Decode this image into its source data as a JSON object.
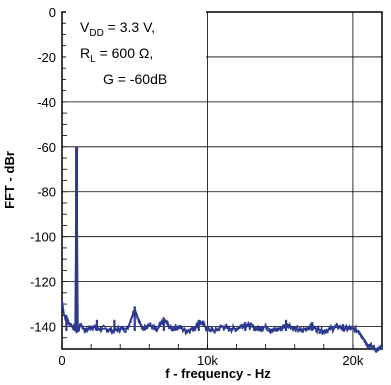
{
  "chart_data": {
    "type": "line",
    "title": "",
    "xlabel": "f - frequency - Hz",
    "ylabel": "FFT - dBr",
    "xlim": [
      0,
      22000
    ],
    "ylim": [
      -150,
      0
    ],
    "x_ticks": [
      0,
      10000,
      20000
    ],
    "x_tick_labels": [
      "0",
      "10k",
      "20k"
    ],
    "y_ticks": [
      0,
      -20,
      -40,
      -60,
      -80,
      -100,
      -120,
      -140
    ],
    "y_tick_labels": [
      "0",
      "-20",
      "-40",
      "-60",
      "-80",
      "-100",
      "-120",
      "-140"
    ],
    "grid": true,
    "line_color": "#2b3990",
    "annotation": {
      "line1_main": "V",
      "line1_sub": "DD",
      "line1_rest": " = 3.3 V,",
      "line2_main": "R",
      "line2_sub": "L",
      "line2_rest": " = 600 Ω,",
      "line3": "G = -60dB"
    },
    "series": [
      {
        "x": [
          0,
          150,
          300,
          450,
          600,
          750,
          900,
          1000,
          1100,
          1300,
          1600,
          2000,
          2500,
          3000,
          3500,
          4000,
          4500,
          5000,
          5500,
          6000,
          6500,
          7000,
          7500,
          8000,
          8500,
          9000,
          9500,
          10000,
          10500,
          11000,
          11500,
          12000,
          12500,
          13000,
          13500,
          14000,
          14500,
          15000,
          15500,
          16000,
          16500,
          17000,
          17500,
          18000,
          18500,
          19000,
          19500,
          20000,
          20400,
          20600,
          20800,
          21000,
          21300,
          21600,
          22000
        ],
        "y": [
          -128,
          -135,
          -137,
          -138,
          -139,
          -140,
          -141,
          -60,
          -142,
          -139,
          -142,
          -140,
          -141,
          -141,
          -142,
          -141,
          -141,
          -132,
          -141,
          -139,
          -142,
          -137,
          -141,
          -140,
          -142,
          -141,
          -138,
          -141,
          -142,
          -140,
          -141,
          -141,
          -139,
          -140,
          -141,
          -140,
          -142,
          -141,
          -139,
          -141,
          -142,
          -140,
          -141,
          -142,
          -141,
          -140,
          -141,
          -141,
          -142,
          -144,
          -146,
          -148,
          -149,
          -150,
          -150
        ]
      }
    ],
    "spurs": [
      {
        "x": 300,
        "y": -135
      },
      {
        "x": 2400,
        "y": -137
      },
      {
        "x": 3600,
        "y": -137
      },
      {
        "x": 5000,
        "y": -131
      },
      {
        "x": 7000,
        "y": -136
      },
      {
        "x": 9400,
        "y": -137
      },
      {
        "x": 12600,
        "y": -138
      },
      {
        "x": 15400,
        "y": -137
      },
      {
        "x": 17200,
        "y": -138
      },
      {
        "x": 19300,
        "y": -139
      }
    ]
  }
}
